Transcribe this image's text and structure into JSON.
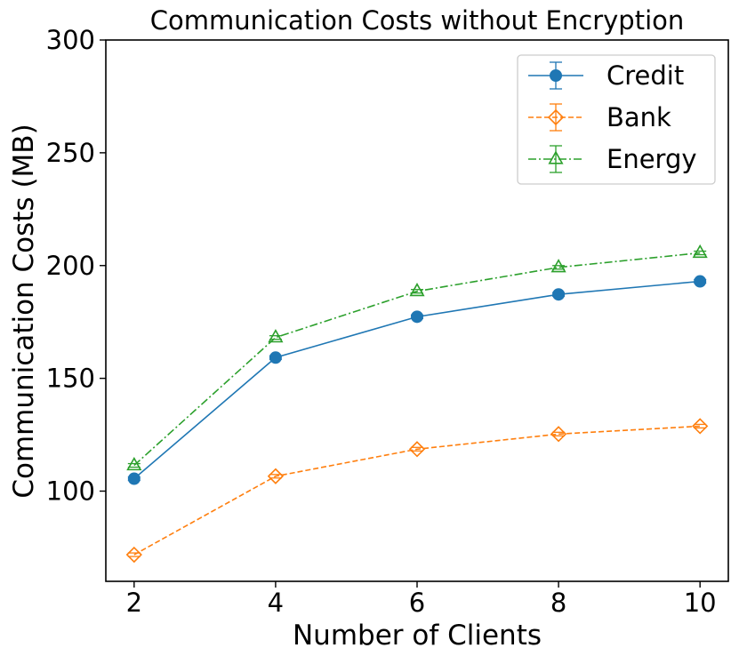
{
  "chart_data": {
    "type": "line",
    "title": "Communication Costs without Encryption",
    "xlabel": "Number of Clients",
    "ylabel": "Communication Costs (MB)",
    "x": [
      2,
      4,
      6,
      8,
      10
    ],
    "xlim": [
      1.6,
      10.4
    ],
    "ylim": [
      60,
      300
    ],
    "xticks": [
      2,
      4,
      6,
      8,
      10
    ],
    "yticks": [
      100,
      150,
      200,
      250,
      300
    ],
    "grid": false,
    "legend_position": "top-right",
    "series": [
      {
        "name": "Credit",
        "values": [
          105.5,
          159.2,
          177.3,
          187.2,
          193.0
        ],
        "color": "#1f77b4",
        "linestyle": "solid",
        "marker": "circle"
      },
      {
        "name": "Bank",
        "values": [
          71.8,
          106.6,
          118.6,
          125.3,
          128.8
        ],
        "color": "#ff7f0e",
        "linestyle": "dashed",
        "marker": "diamond"
      },
      {
        "name": "Energy",
        "values": [
          111.4,
          168.1,
          188.6,
          199.2,
          205.6
        ],
        "color": "#2ca02c",
        "linestyle": "dashdot",
        "marker": "triangle-up"
      }
    ]
  }
}
